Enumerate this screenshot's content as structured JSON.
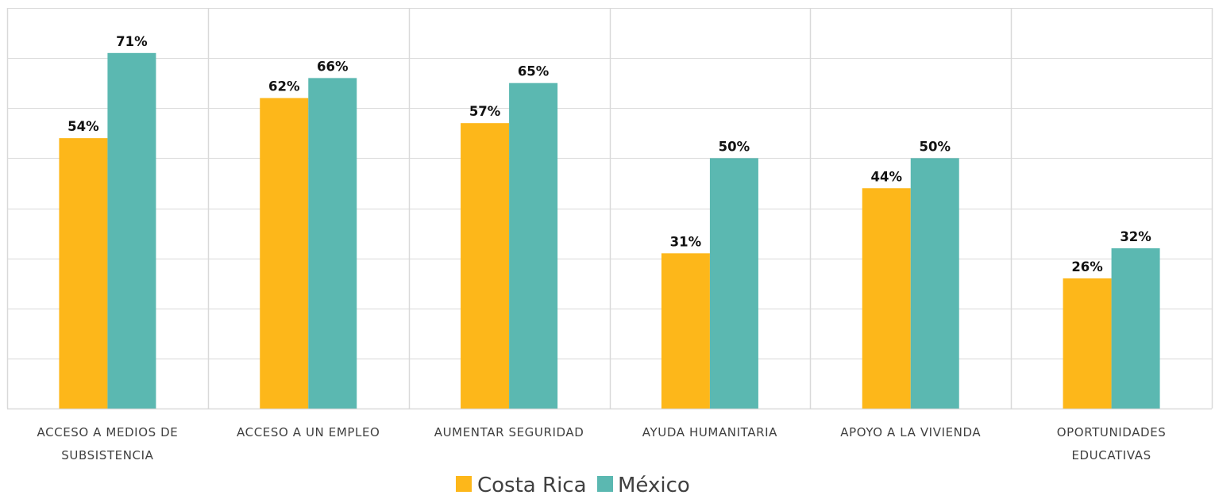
{
  "chart_data": {
    "type": "bar",
    "categories": [
      [
        "ACCESO A MEDIOS DE",
        "SUBSISTENCIA"
      ],
      [
        "ACCESO A UN EMPLEO"
      ],
      [
        "AUMENTAR SEGURIDAD"
      ],
      [
        "AYUDA HUMANITARIA"
      ],
      [
        "APOYO A LA VIVIENDA"
      ],
      [
        "OPORTUNIDADES",
        "EDUCATIVAS"
      ]
    ],
    "series": [
      {
        "name": "Costa Rica",
        "color": "#FDB71A",
        "values": [
          54,
          62,
          57,
          31,
          44,
          26
        ],
        "labels": [
          "54%",
          "62%",
          "57%",
          "31%",
          "44%",
          "26%"
        ]
      },
      {
        "name": "México",
        "color": "#5BB8B1",
        "values": [
          71,
          66,
          65,
          50,
          50,
          32
        ],
        "labels": [
          "71%",
          "66%",
          "65%",
          "50%",
          "50%",
          "32%"
        ]
      }
    ],
    "ylim": [
      0,
      80
    ],
    "grid": true,
    "legend": "bottom-center",
    "title": "",
    "xlabel": "",
    "ylabel": ""
  }
}
